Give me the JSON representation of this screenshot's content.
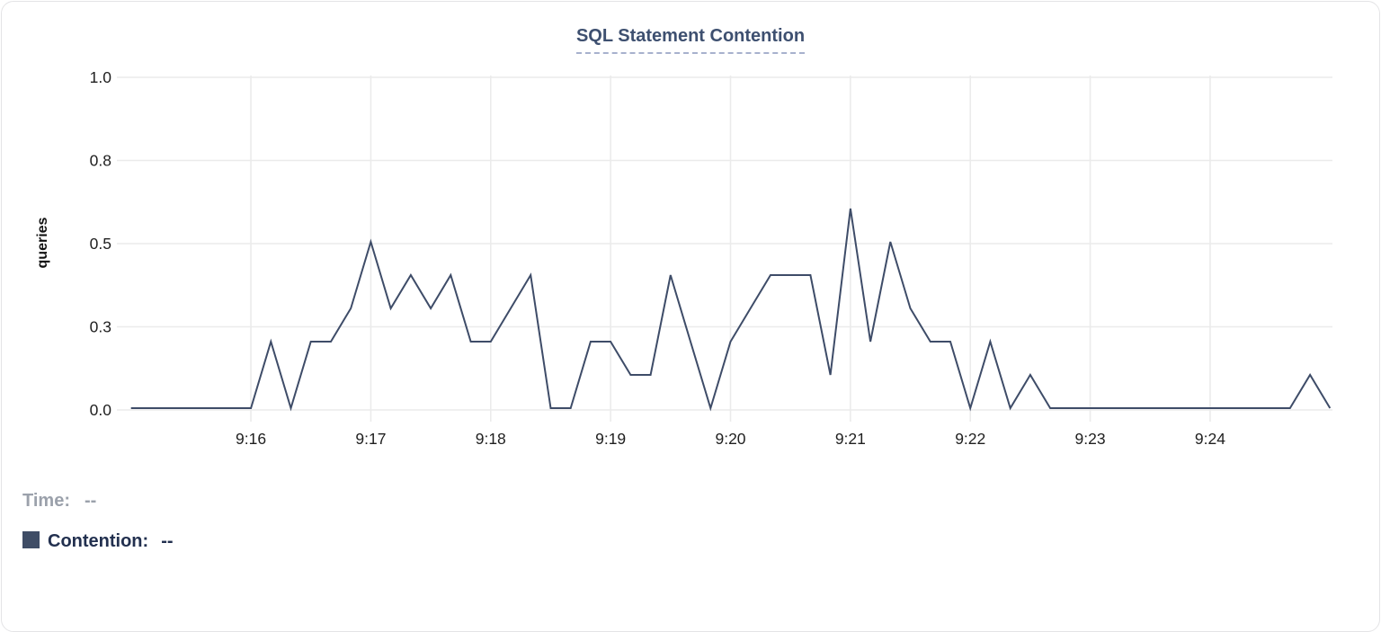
{
  "title": "SQL Statement Contention",
  "chart_data": {
    "type": "line",
    "title": "SQL Statement Contention",
    "xlabel": "",
    "ylabel": "queries",
    "ylim": [
      0,
      1.0
    ],
    "grid": true,
    "yticks": [
      {
        "value": 1.0,
        "label": "1.0"
      },
      {
        "value": 0.75,
        "label": "0.8"
      },
      {
        "value": 0.5,
        "label": "0.5"
      },
      {
        "value": 0.25,
        "label": "0.3"
      },
      {
        "value": 0.0,
        "label": "0.0"
      }
    ],
    "xticks": [
      "9:16",
      "9:17",
      "9:18",
      "9:19",
      "9:20",
      "9:21",
      "9:22",
      "9:23",
      "9:24"
    ],
    "x_start": "9:15:00",
    "x_end": "9:25:00",
    "interval_seconds": 10,
    "series": [
      {
        "name": "Contention",
        "color": "#3e4c68",
        "times": [
          "9:15:00",
          "9:15:10",
          "9:15:20",
          "9:15:30",
          "9:15:40",
          "9:15:50",
          "9:16:00",
          "9:16:10",
          "9:16:20",
          "9:16:30",
          "9:16:40",
          "9:16:50",
          "9:17:00",
          "9:17:10",
          "9:17:20",
          "9:17:30",
          "9:17:40",
          "9:17:50",
          "9:18:00",
          "9:18:10",
          "9:18:20",
          "9:18:30",
          "9:18:40",
          "9:18:50",
          "9:19:00",
          "9:19:10",
          "9:19:20",
          "9:19:30",
          "9:19:40",
          "9:19:50",
          "9:20:00",
          "9:20:10",
          "9:20:20",
          "9:20:30",
          "9:20:40",
          "9:20:50",
          "9:21:00",
          "9:21:10",
          "9:21:20",
          "9:21:30",
          "9:21:40",
          "9:21:50",
          "9:22:00",
          "9:22:10",
          "9:22:20",
          "9:22:30",
          "9:22:40",
          "9:22:50",
          "9:23:00",
          "9:23:10",
          "9:23:20",
          "9:23:30",
          "9:23:40",
          "9:23:50",
          "9:24:00",
          "9:24:10",
          "9:24:20",
          "9:24:30",
          "9:24:40",
          "9:24:50",
          "9:25:00"
        ],
        "values": [
          0,
          0,
          0,
          0,
          0,
          0,
          0,
          0.2,
          0,
          0.2,
          0.2,
          0.3,
          0.5,
          0.3,
          0.4,
          0.3,
          0.4,
          0.2,
          0.2,
          0.3,
          0.4,
          0,
          0,
          0.2,
          0.2,
          0.1,
          0.1,
          0.4,
          0.2,
          0,
          0.2,
          0.3,
          0.4,
          0.4,
          0.4,
          0.1,
          0.6,
          0.2,
          0.5,
          0.3,
          0.2,
          0.2,
          0,
          0.2,
          0,
          0.1,
          0,
          0,
          0,
          0,
          0,
          0,
          0,
          0,
          0,
          0,
          0,
          0,
          0,
          0.1,
          0
        ]
      }
    ]
  },
  "legend": {
    "time_label": "Time:",
    "time_value": "--",
    "contention_label": "Contention:",
    "contention_value": "--",
    "swatch_color": "#3f4d66"
  },
  "colors": {
    "line": "#3e4c68",
    "grid": "#ebebeb",
    "axis_text": "#1f1f1f",
    "title_text": "#3e5070",
    "title_underline": "#a7b1cd",
    "legend_muted": "#9ba1ab",
    "legend_dark": "#22304f",
    "card_border": "#e4e4e6"
  }
}
